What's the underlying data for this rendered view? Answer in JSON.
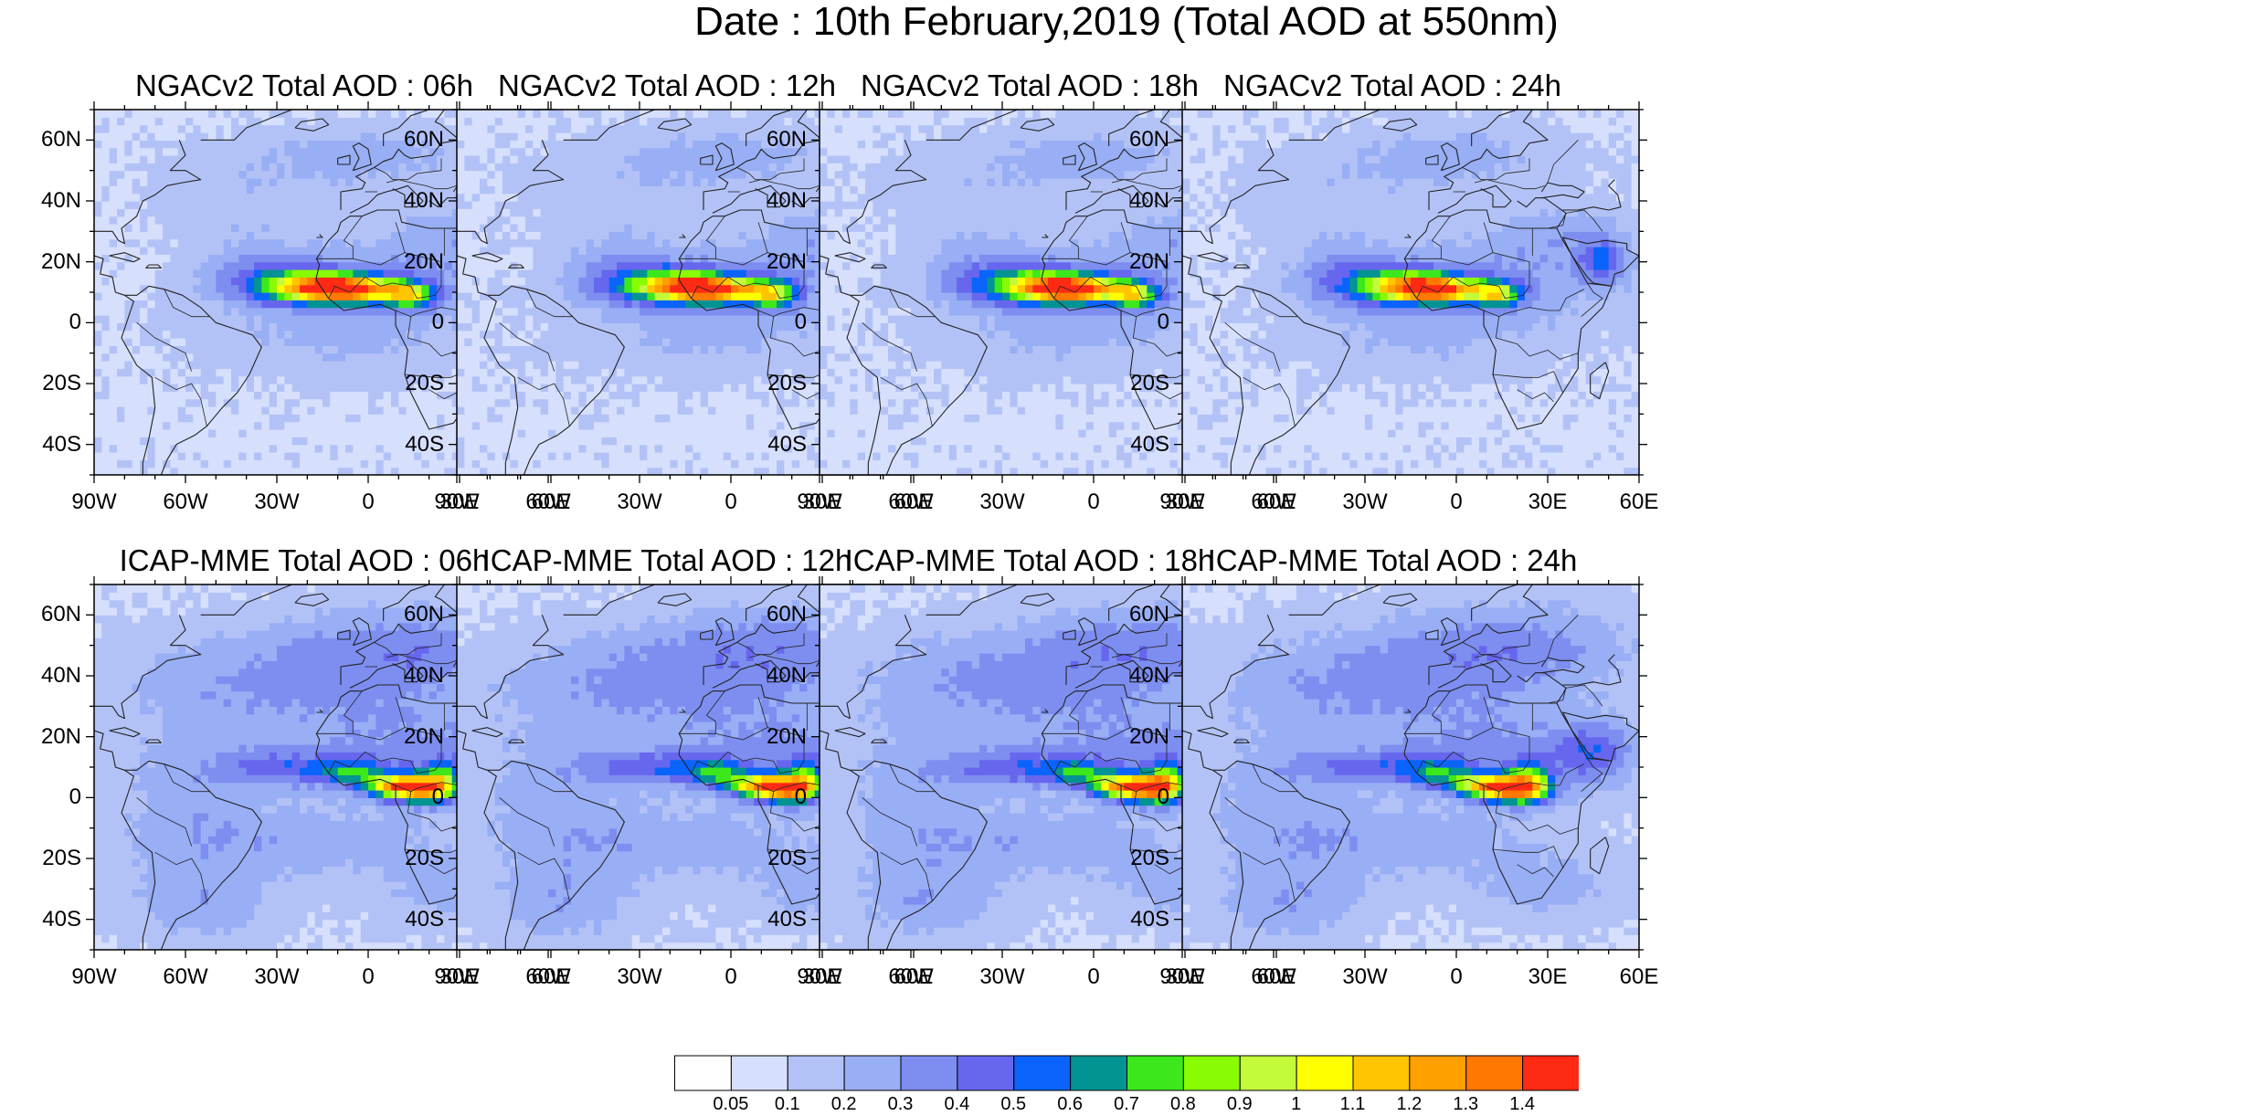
{
  "figure": {
    "title": "Date : 10th February,2019 (Total AOD at 550nm)"
  },
  "panels": [
    {
      "title": "NGACv2 Total AOD : 06h",
      "model": "ngac",
      "lead": "06h"
    },
    {
      "title": "NGACv2 Total AOD : 12h",
      "model": "ngac",
      "lead": "12h"
    },
    {
      "title": "NGACv2 Total AOD : 18h",
      "model": "ngac",
      "lead": "18h"
    },
    {
      "title": "NGACv2 Total AOD : 24h",
      "model": "ngac",
      "lead": "24h"
    },
    {
      "title": "ICAP-MME Total AOD : 06h",
      "model": "icap",
      "lead": "06h"
    },
    {
      "title": "ICAP-MME Total AOD : 12h",
      "model": "icap",
      "lead": "12h"
    },
    {
      "title": "ICAP-MME Total AOD : 18h",
      "model": "icap",
      "lead": "18h"
    },
    {
      "title": "ICAP-MME Total AOD : 24h",
      "model": "icap",
      "lead": "24h"
    }
  ],
  "axes": {
    "lat_ticks": [
      {
        "value": 60,
        "label": "60N"
      },
      {
        "value": 40,
        "label": "40N"
      },
      {
        "value": 20,
        "label": "20N"
      },
      {
        "value": 0,
        "label": "0"
      },
      {
        "value": -20,
        "label": "20S"
      },
      {
        "value": -40,
        "label": "40S"
      }
    ],
    "lon_ticks": [
      {
        "value": -90,
        "label": "90W"
      },
      {
        "value": -60,
        "label": "60W"
      },
      {
        "value": -30,
        "label": "30W"
      },
      {
        "value": 0,
        "label": "0"
      },
      {
        "value": 30,
        "label": "30E"
      },
      {
        "value": 60,
        "label": "60E"
      }
    ],
    "lon_range": [
      -90,
      60
    ],
    "lat_range": [
      -50,
      70
    ]
  },
  "colorbar": {
    "labels": [
      "0.05",
      "0.1",
      "0.2",
      "0.3",
      "0.4",
      "0.5",
      "0.6",
      "0.7",
      "0.8",
      "0.9",
      "1",
      "1.1",
      "1.2",
      "1.3",
      "1.4"
    ],
    "colors": [
      "#ffffff",
      "#d6dffc",
      "#b3c2f6",
      "#98aef5",
      "#7d8ef0",
      "#6667ee",
      "#0a64fb",
      "#029393",
      "#3ce81b",
      "#89fb03",
      "#c3fb3b",
      "#ffff00",
      "#ffc500",
      "#ff9f00",
      "#ff7800",
      "#ff2a14"
    ]
  }
}
